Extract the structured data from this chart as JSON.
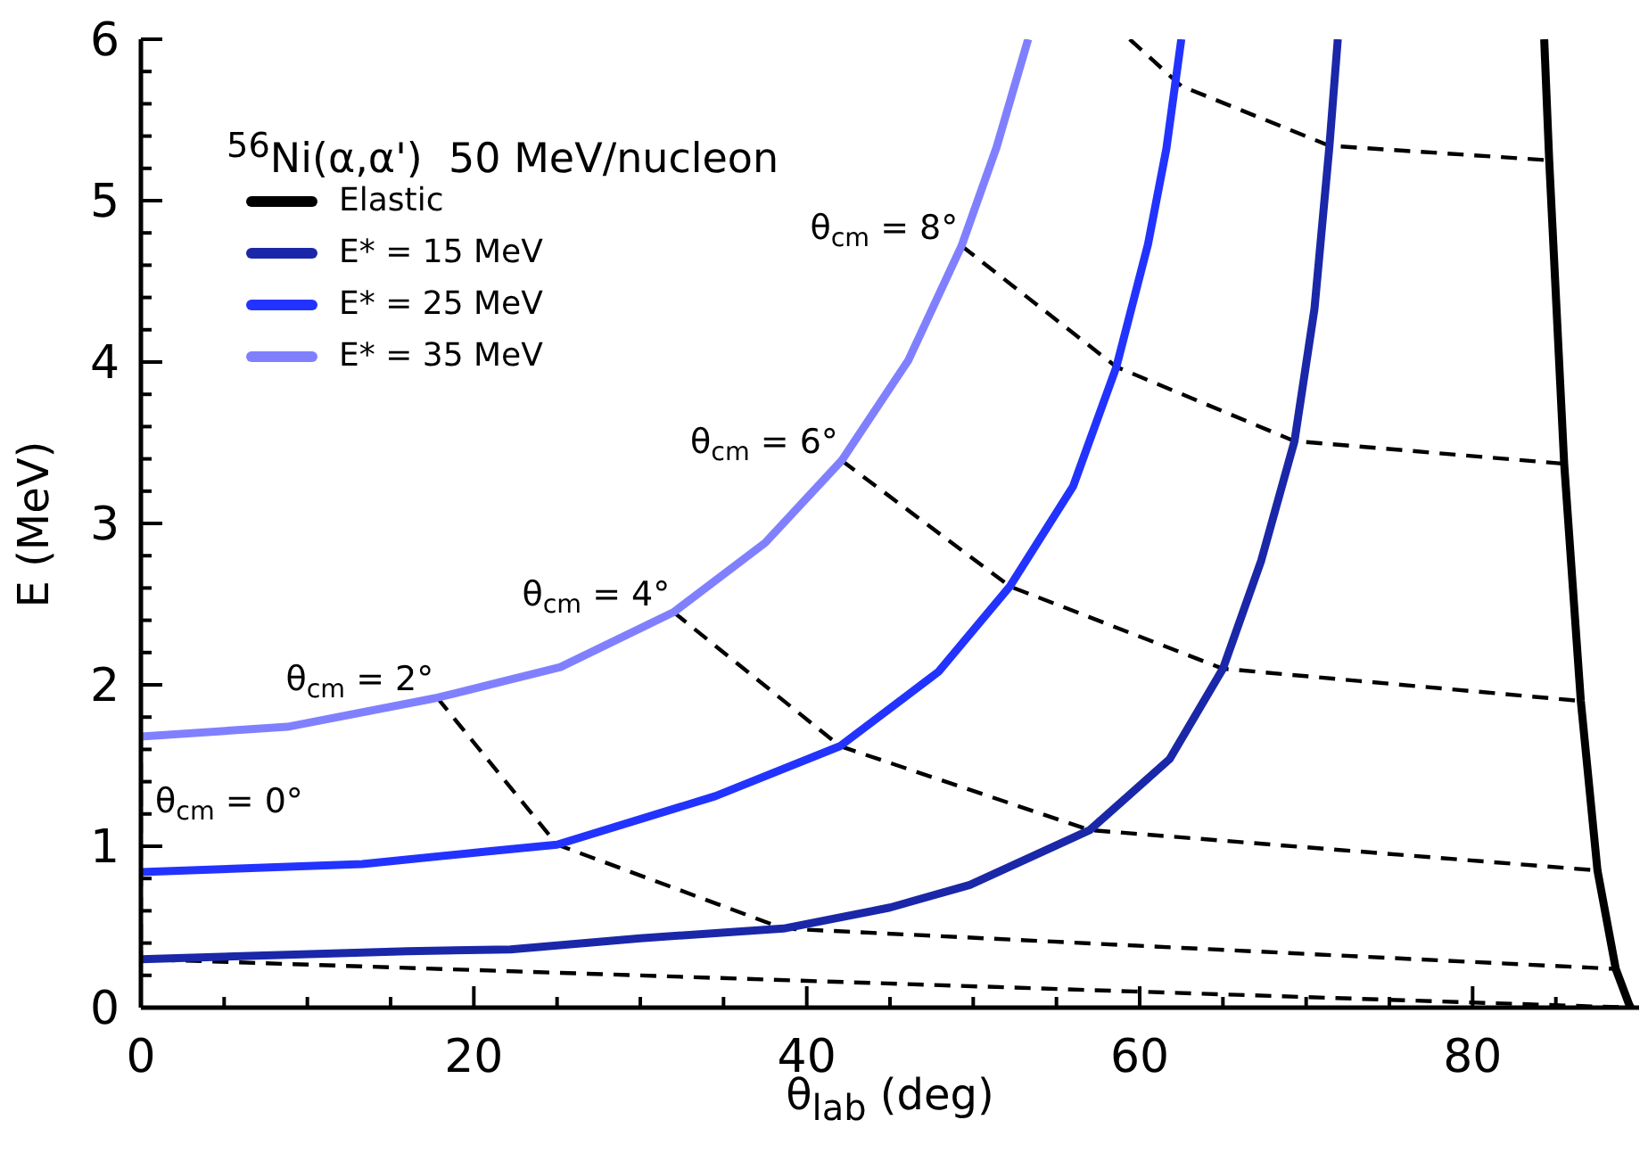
{
  "chart_data": {
    "type": "line",
    "title": "$^{56}$Ni(α,α')  50 MeV/nucleon",
    "xlabel": "θ$_{lab}$ (deg)",
    "ylabel": "E (MeV)",
    "xlim": [
      0,
      90
    ],
    "ylim": [
      0,
      6
    ],
    "xticks": [
      0,
      {
        "value": 5,
        "label": null
      },
      {
        "value": 10,
        "label": null
      },
      {
        "value": 15,
        "label": null
      },
      20,
      {
        "value": 25,
        "label": null
      },
      {
        "value": 30,
        "label": null
      },
      {
        "value": 35,
        "label": null
      },
      40,
      {
        "value": 45,
        "label": null
      },
      {
        "value": 50,
        "label": null
      },
      {
        "value": 55,
        "label": null
      },
      60,
      {
        "value": 65,
        "label": null
      },
      {
        "value": 70,
        "label": null
      },
      {
        "value": 75,
        "label": null
      },
      80,
      {
        "value": 85,
        "label": null
      }
    ],
    "yticks": [
      0,
      {
        "value": 0.2,
        "label": null
      },
      {
        "value": 0.4,
        "label": null
      },
      {
        "value": 0.6,
        "label": null
      },
      {
        "value": 0.8,
        "label": null
      },
      1,
      {
        "value": 1.2,
        "label": null
      },
      {
        "value": 1.4,
        "label": null
      },
      {
        "value": 1.6,
        "label": null
      },
      {
        "value": 1.8,
        "label": null
      },
      2,
      {
        "value": 2.2,
        "label": null
      },
      {
        "value": 2.4,
        "label": null
      },
      {
        "value": 2.6,
        "label": null
      },
      {
        "value": 2.8,
        "label": null
      },
      3,
      {
        "value": 3.2,
        "label": null
      },
      {
        "value": 3.4,
        "label": null
      },
      {
        "value": 3.6,
        "label": null
      },
      {
        "value": 3.8,
        "label": null
      },
      4,
      {
        "value": 4.2,
        "label": null
      },
      {
        "value": 4.4,
        "label": null
      },
      {
        "value": 4.6,
        "label": null
      },
      {
        "value": 4.8,
        "label": null
      },
      5,
      {
        "value": 5.2,
        "label": null
      },
      {
        "value": 5.4,
        "label": null
      },
      {
        "value": 5.6,
        "label": null
      },
      {
        "value": 5.8,
        "label": null
      },
      6
    ],
    "legend": "top left",
    "marker": "none",
    "series": [
      {
        "name": "Elastic",
        "color": "#000000",
        "line_style": "solid",
        "x": [
          84.3,
          84.6,
          85.5,
          86.5,
          87.5,
          88.6,
          89.4,
          89.5
        ],
        "values": [
          6,
          5.25,
          3.37,
          1.9,
          0.85,
          0.24,
          0.02,
          0
        ]
      },
      {
        "name": "E* = 15 MeV",
        "color": "#1a27a8",
        "line_style": "solid",
        "x": [
          0,
          16,
          22.2,
          30,
          38.6,
          45,
          49.8,
          57,
          61.8,
          65,
          67.3,
          69.3,
          70.5,
          71.4,
          71.9
        ],
        "values": [
          0.3,
          0.35,
          0.36,
          0.43,
          0.49,
          0.62,
          0.76,
          1.1,
          1.54,
          2.1,
          2.77,
          3.51,
          4.33,
          5.34,
          6
        ]
      },
      {
        "name": "E* = 25 MeV",
        "color": "#2233ff",
        "line_style": "solid",
        "x": [
          0,
          13.3,
          21,
          25,
          34.5,
          42,
          47.9,
          52.2,
          56,
          58.6,
          60.5,
          61.6,
          62.5
        ],
        "values": [
          0.84,
          0.89,
          0.97,
          1.01,
          1.31,
          1.62,
          2.08,
          2.61,
          3.23,
          3.97,
          4.73,
          5.32,
          6
        ]
      },
      {
        "name": "E* = 35 MeV",
        "color": "#8080ff",
        "line_style": "solid",
        "x": [
          0,
          8.8,
          17.8,
          25.2,
          32,
          37.5,
          42.1,
          46.1,
          49.3,
          51.4,
          53.3
        ],
        "values": [
          1.68,
          1.74,
          1.92,
          2.11,
          2.45,
          2.88,
          3.39,
          4.01,
          4.72,
          5.33,
          6
        ]
      },
      {
        "color": "#000000",
        "line_style": "dashed",
        "x": [
          0,
          0,
          0,
          89.5
        ],
        "values": [
          1.68,
          0.84,
          0.3,
          0
        ]
      },
      {
        "color": "#000000",
        "line_style": "dashed",
        "x": [
          17.8,
          25,
          38.6,
          88.6
        ],
        "values": [
          1.92,
          1.01,
          0.49,
          0.24
        ]
      },
      {
        "color": "#000000",
        "line_style": "dashed",
        "x": [
          32,
          42,
          57,
          87.5
        ],
        "values": [
          2.45,
          1.62,
          1.1,
          0.85
        ]
      },
      {
        "color": "#000000",
        "line_style": "dashed",
        "x": [
          42.1,
          52.2,
          65,
          86.5
        ],
        "values": [
          3.39,
          2.61,
          2.1,
          1.9
        ]
      },
      {
        "color": "#000000",
        "line_style": "dashed",
        "x": [
          49.3,
          58.6,
          69.3,
          85.5
        ],
        "values": [
          4.72,
          3.97,
          3.51,
          3.37
        ]
      },
      {
        "color": "#000000",
        "line_style": "dashed",
        "x": [
          59.4,
          62.5,
          71.4,
          84.6
        ],
        "values": [
          6,
          5.71,
          5.34,
          5.25
        ]
      }
    ],
    "annotations": [
      {
        "text": "θ$_{cm}$ = 0°",
        "x": 0,
        "y": 1.3
      },
      {
        "text": "θ$_{cm}$ = 2°",
        "x": 17.8,
        "y": 1.92
      },
      {
        "text": "θ$_{cm}$ = 4°",
        "x": 32,
        "y": 2.45
      },
      {
        "text": "θ$_{cm}$ = 6°",
        "x": 42.1,
        "y": 3.39
      },
      {
        "text": "θ$_{cm}$ = 8°",
        "x": 49.3,
        "y": 4.72
      }
    ]
  }
}
